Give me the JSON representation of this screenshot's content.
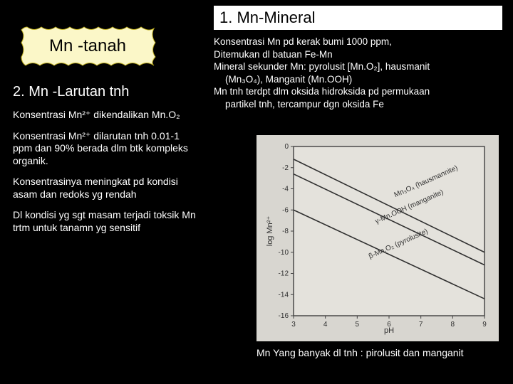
{
  "left": {
    "badge": "Mn -tanah",
    "badge_fill": "#fbf7c8",
    "badge_stroke": "#c0b020",
    "heading": "2. Mn -Larutan tnh",
    "paragraphs": [
      "Konsentrasi Mn²⁺ dikendalikan Mn.O₂",
      "Konsentrasi Mn²⁺ dilarutan tnh 0.01-1 ppm dan 90% berada dlm btk kompleks organik.",
      "Konsentrasinya meningkat pd kondisi asam dan redoks yg rendah",
      "Dl kondisi yg sgt masam terjadi toksik Mn trtm untuk tanamn yg sensitif"
    ]
  },
  "right": {
    "heading": "1. Mn-Mineral",
    "bullets": [
      [
        "Konsentrasi Mn pd kerak bumi 1000 ppm,"
      ],
      [
        "Ditemukan dl batuan Fe-Mn"
      ],
      [
        "Mineral sekunder  Mn: pyrolusit [Mn.O₂], hausmanit",
        "(Mn₃O₄), Manganit (Mn.OOH)"
      ],
      [
        "Mn tnh terdpt dlm oksida hidroksida pd permukaan",
        "partikel tnh, tercampur dgn oksida Fe"
      ]
    ]
  },
  "chart": {
    "type": "line",
    "background_color": "#d8d6d0",
    "plot_bg": "#e4e2dc",
    "axis_color": "#404040",
    "line_color": "#303030",
    "text_color": "#303030",
    "grid_color": "#b8b6b0",
    "xlabel": "pH",
    "ylabel": "log Mn²⁺",
    "label_fontsize": 11,
    "tick_fontsize": 10,
    "xlim": [
      3,
      9
    ],
    "ylim": [
      -16,
      0
    ],
    "xticks": [
      3,
      4,
      5,
      6,
      7,
      8,
      9
    ],
    "yticks": [
      -16,
      -14,
      -12,
      -10,
      -8,
      -6,
      -4,
      -2,
      0
    ],
    "line_width": 1.6,
    "series": [
      {
        "label": "Mn₃O₄ (hausmannite)",
        "points": [
          [
            3,
            -1.2
          ],
          [
            9,
            -10.0
          ]
        ]
      },
      {
        "label": "γ-Mn.OOH (manganite)",
        "points": [
          [
            3,
            -2.6
          ],
          [
            9,
            -11.2
          ]
        ]
      },
      {
        "label": "β-Mn.O₂ (pyrolusite)",
        "points": [
          [
            3,
            -6.0
          ],
          [
            9,
            -14.4
          ]
        ]
      }
    ]
  },
  "caption": "Mn Yang banyak dl tnh : pirolusit dan manganit",
  "colors": {
    "page_bg": "#000000",
    "text": "#ffffff",
    "heading_bg": "#ffffff",
    "heading_fg": "#000000"
  }
}
